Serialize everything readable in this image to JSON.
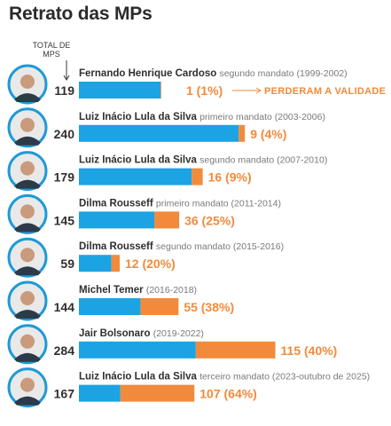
{
  "title": "Retrato das MPs",
  "column_header": [
    "TOTAL DE",
    "MPS"
  ],
  "colors": {
    "blue": "#1ba3e3",
    "orange": "#f28a3c",
    "avatar_ring": "#1e9ad6"
  },
  "chart_data": {
    "type": "bar",
    "stacked": true,
    "orientation": "horizontal",
    "rows": [
      {
        "name": "Fernando Henrique Cardoso",
        "period": "segundo mandato (1999-2002)",
        "total": 119,
        "lost": 1,
        "lost_label": "1 (1%)",
        "note": "PERDERAM A VALIDADE"
      },
      {
        "name": "Luiz Inácio Lula da Silva",
        "period": "primeiro mandato (2003-2006)",
        "total": 240,
        "lost": 9,
        "lost_label": "9 (4%)"
      },
      {
        "name": "Luiz Inácio Lula da Silva",
        "period": "segundo mandato (2007-2010)",
        "total": 179,
        "lost": 16,
        "lost_label": "16 (9%)"
      },
      {
        "name": "Dilma Rousseff",
        "period": "primeiro mandato (2011-2014)",
        "total": 145,
        "lost": 36,
        "lost_label": "36 (25%)"
      },
      {
        "name": "Dilma Rousseff",
        "period": "segundo mandato (2015-2016)",
        "total": 59,
        "lost": 12,
        "lost_label": "12 (20%)"
      },
      {
        "name": "Michel Temer",
        "period": "(2016-2018)",
        "total": 144,
        "lost": 55,
        "lost_label": "55 (38%)"
      },
      {
        "name": "Jair Bolsonaro",
        "period": "(2019-2022)",
        "total": 284,
        "lost": 115,
        "lost_label": "115 (40%)"
      },
      {
        "name": "Luiz Inácio Lula da Silva",
        "period": "terceiro mandato (2023-outubro de 2025)",
        "total": 167,
        "lost": 107,
        "lost_label": "107 (64%)"
      }
    ]
  }
}
